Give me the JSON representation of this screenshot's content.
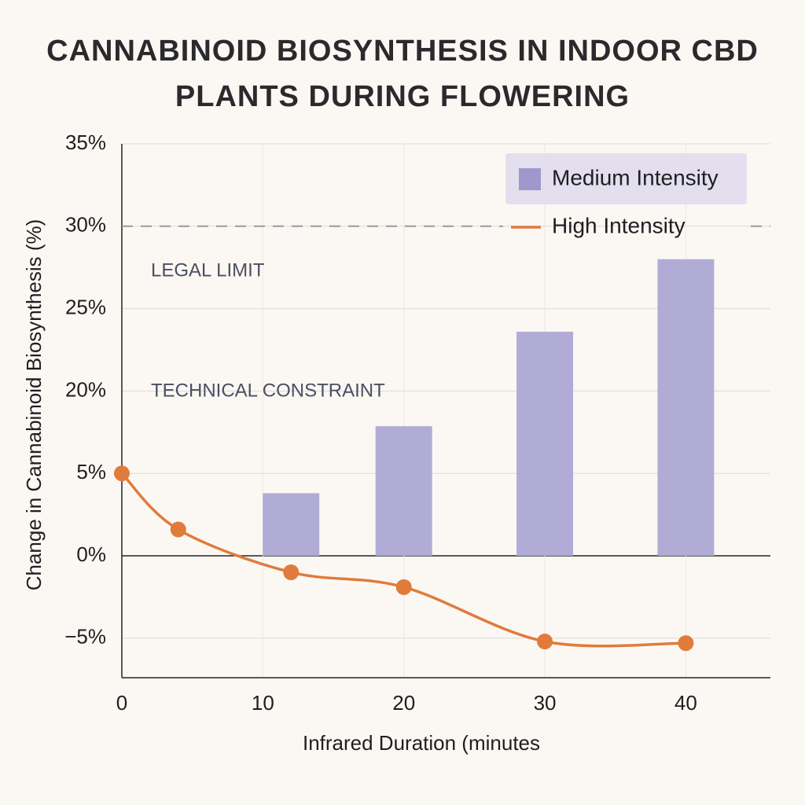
{
  "chart_data": {
    "type": "bar-line",
    "title": "CANNABINOID BIOSYNTHESIS IN INDOOR CBD PLANTS DURING FLOWERING",
    "x_label": "Infrared Duration (minutes",
    "y_label": "Change in Cannabinoid Biosynthesis (%)",
    "xlim": [
      0,
      46
    ],
    "xticks": [
      0,
      10,
      20,
      30,
      40
    ],
    "ylim": [
      -7.4,
      35
    ],
    "yticks": [
      {
        "value": 35,
        "label": "35%"
      },
      {
        "value": 30,
        "label": "30%"
      },
      {
        "value": 25,
        "label": "25%"
      },
      {
        "value": 20,
        "label": "20%"
      },
      {
        "value": 5,
        "label": "5%"
      },
      {
        "value": 0,
        "label": "0%"
      },
      {
        "value": -5,
        "label": "−5%"
      }
    ],
    "grid": true,
    "reference_line": 30,
    "annotations": [
      "LEGAL LIMIT",
      "TECHNICAL CONSTRAINT"
    ],
    "legend": "upper right",
    "series": [
      {
        "name": "Medium Intensity",
        "kind": "bar",
        "color": "#b1acd6",
        "x": [
          12,
          20,
          30,
          40
        ],
        "values": [
          3.8,
          13.6,
          23.6,
          28
        ]
      },
      {
        "name": "High Intensity",
        "kind": "line",
        "color": "#e07b3c",
        "x": [
          0,
          4,
          12,
          20,
          30,
          40
        ],
        "values": [
          5,
          1.6,
          -1,
          -1.9,
          -5.2,
          -5.3
        ]
      }
    ]
  }
}
